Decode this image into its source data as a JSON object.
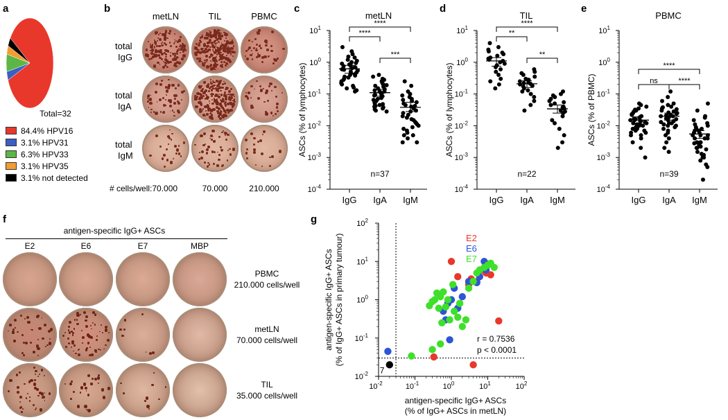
{
  "panels": {
    "a": "a",
    "b": "b",
    "c": "c",
    "d": "d",
    "e": "e",
    "f": "f",
    "g": "g"
  },
  "pie": {
    "total_label": "Total=32",
    "slices": [
      {
        "label": "84.4%",
        "name": "HPV16",
        "value": 84.4,
        "color": "#e8382b"
      },
      {
        "label": "3.1%",
        "name": "HPV31",
        "value": 3.1,
        "color": "#3b5fc4"
      },
      {
        "label": "6.3%",
        "name": "HPV33",
        "value": 6.3,
        "color": "#5cb646"
      },
      {
        "label": "3.1%",
        "name": "HPV35",
        "value": 3.1,
        "color": "#f39c32"
      },
      {
        "label": "3.1%",
        "name": "not detected",
        "value": 3.1,
        "color": "#000000"
      }
    ]
  },
  "elispot_b": {
    "columns": [
      "metLN",
      "TIL",
      "PBMC"
    ],
    "rows": [
      [
        "total",
        "IgG"
      ],
      [
        "total",
        "IgA"
      ],
      [
        "total",
        "IgM"
      ]
    ],
    "cells_label": "# cells/well:",
    "cells": [
      "70.000",
      "70.000",
      "210.000"
    ]
  },
  "elispot_f": {
    "header": "antigen-specific IgG+ ASCs",
    "columns": [
      "E2",
      "E6",
      "E7",
      "MBP"
    ],
    "rows": [
      {
        "name": "PBMC",
        "cells": "210.000 cells/well"
      },
      {
        "name": "metLN",
        "cells": "70.000 cells/well"
      },
      {
        "name": "TIL",
        "cells": "35.000 cells/well"
      }
    ]
  },
  "chart_data": [
    {
      "type": "scatter",
      "panel": "c",
      "title": "metLN",
      "ylabel": "ASCs (% of lymphocytes)",
      "categories": [
        "IgG",
        "IgA",
        "IgM"
      ],
      "y_scale": "log",
      "ylim": [
        0.0001,
        10
      ],
      "yticks": [
        "10",
        "10",
        "10",
        "10",
        "10",
        "10"
      ],
      "yexps": [
        "1",
        "0",
        "-1",
        "-2",
        "-3",
        "-4"
      ],
      "n_label": "n=37",
      "means": [
        0.62,
        0.11,
        0.038
      ],
      "sems": [
        [
          0.45,
          0.8
        ],
        [
          0.085,
          0.14
        ],
        [
          0.028,
          0.055
        ]
      ],
      "series": [
        {
          "name": "IgG",
          "values": [
            3.0,
            2.2,
            1.8,
            1.5,
            1.4,
            1.2,
            1.1,
            1.0,
            0.95,
            0.9,
            0.85,
            0.8,
            0.75,
            0.7,
            0.68,
            0.65,
            0.6,
            0.58,
            0.55,
            0.5,
            0.48,
            0.45,
            0.42,
            0.4,
            0.38,
            0.35,
            0.33,
            0.3,
            0.28,
            0.25,
            0.22,
            0.2,
            0.18,
            0.16,
            0.15,
            0.13,
            0.12
          ]
        },
        {
          "name": "IgA",
          "values": [
            0.4,
            0.35,
            0.3,
            0.28,
            0.25,
            0.22,
            0.2,
            0.19,
            0.18,
            0.17,
            0.15,
            0.14,
            0.13,
            0.12,
            0.12,
            0.11,
            0.1,
            0.1,
            0.095,
            0.09,
            0.085,
            0.08,
            0.075,
            0.07,
            0.065,
            0.06,
            0.055,
            0.05,
            0.048,
            0.045,
            0.042,
            0.04,
            0.038,
            0.035,
            0.033,
            0.03,
            0.028
          ]
        },
        {
          "name": "IgM",
          "values": [
            0.25,
            0.18,
            0.12,
            0.1,
            0.09,
            0.08,
            0.07,
            0.065,
            0.06,
            0.055,
            0.05,
            0.045,
            0.042,
            0.04,
            0.038,
            0.035,
            0.03,
            0.028,
            0.025,
            0.022,
            0.02,
            0.018,
            0.016,
            0.015,
            0.013,
            0.012,
            0.011,
            0.01,
            0.009,
            0.008,
            0.007,
            0.006,
            0.005,
            0.005,
            0.004,
            0.003,
            0.003
          ]
        }
      ],
      "brackets": [
        {
          "from": 0,
          "to": 1,
          "label": "****",
          "level": 0
        },
        {
          "from": 1,
          "to": 2,
          "label": "***",
          "level": 0
        },
        {
          "from": 0,
          "to": 2,
          "label": "****",
          "level": 1
        }
      ]
    },
    {
      "type": "scatter",
      "panel": "d",
      "title": "TIL",
      "ylabel": "ASCs (% of lymphocytes)",
      "categories": [
        "IgG",
        "IgA",
        "IgM"
      ],
      "y_scale": "log",
      "ylim": [
        0.0001,
        10
      ],
      "yticks": [
        "10",
        "10",
        "10",
        "10",
        "10",
        "10"
      ],
      "yexps": [
        "1",
        "0",
        "-1",
        "-2",
        "-3",
        "-4"
      ],
      "n_label": "n=22",
      "means": [
        1.1,
        0.21,
        0.034
      ],
      "sems": [
        [
          0.75,
          1.4
        ],
        [
          0.16,
          0.26
        ],
        [
          0.025,
          0.045
        ]
      ],
      "series": [
        {
          "name": "IgG",
          "values": [
            4.0,
            3.0,
            2.5,
            2.2,
            2.0,
            1.8,
            1.6,
            1.4,
            1.3,
            1.2,
            1.1,
            1.0,
            0.9,
            0.8,
            0.7,
            0.6,
            0.5,
            0.4,
            0.3,
            0.25,
            0.2,
            0.15
          ]
        },
        {
          "name": "IgA",
          "values": [
            0.6,
            0.5,
            0.45,
            0.4,
            0.35,
            0.3,
            0.28,
            0.25,
            0.23,
            0.22,
            0.21,
            0.2,
            0.18,
            0.17,
            0.15,
            0.13,
            0.12,
            0.1,
            0.08,
            0.06,
            0.045,
            0.03
          ]
        },
        {
          "name": "IgM",
          "values": [
            0.12,
            0.1,
            0.09,
            0.08,
            0.07,
            0.06,
            0.055,
            0.05,
            0.045,
            0.04,
            0.038,
            0.035,
            0.03,
            0.028,
            0.025,
            0.02,
            0.015,
            0.012,
            0.008,
            0.005,
            0.003,
            0.002
          ]
        }
      ],
      "brackets": [
        {
          "from": 0,
          "to": 1,
          "label": "**",
          "level": 0
        },
        {
          "from": 1,
          "to": 2,
          "label": "**",
          "level": 0
        },
        {
          "from": 0,
          "to": 2,
          "label": "****",
          "level": 1
        }
      ]
    },
    {
      "type": "scatter",
      "panel": "e",
      "title": "PBMC",
      "ylabel": "ASCs (% of PBMC)",
      "categories": [
        "IgG",
        "IgA",
        "IgM"
      ],
      "y_scale": "log",
      "ylim": [
        0.0001,
        10
      ],
      "yticks": [
        "10",
        "10",
        "10",
        "10",
        "10",
        "10"
      ],
      "yexps": [
        "1",
        "0",
        "-1",
        "-2",
        "-3",
        "-4"
      ],
      "n_label": "n=39",
      "means": [
        0.015,
        0.02,
        0.0055
      ],
      "sems": [
        [
          0.011,
          0.019
        ],
        [
          0.015,
          0.025
        ],
        [
          0.004,
          0.007
        ]
      ],
      "series": [
        {
          "name": "IgG",
          "values": [
            0.05,
            0.045,
            0.04,
            0.035,
            0.032,
            0.03,
            0.028,
            0.025,
            0.023,
            0.022,
            0.02,
            0.019,
            0.018,
            0.017,
            0.016,
            0.015,
            0.015,
            0.014,
            0.013,
            0.012,
            0.012,
            0.011,
            0.011,
            0.01,
            0.01,
            0.009,
            0.009,
            0.008,
            0.008,
            0.007,
            0.007,
            0.006,
            0.006,
            0.005,
            0.005,
            0.004,
            0.003,
            0.002,
            0.001
          ]
        },
        {
          "name": "IgA",
          "values": [
            0.12,
            0.08,
            0.06,
            0.05,
            0.045,
            0.04,
            0.038,
            0.035,
            0.033,
            0.03,
            0.028,
            0.026,
            0.025,
            0.024,
            0.022,
            0.021,
            0.02,
            0.02,
            0.019,
            0.018,
            0.017,
            0.016,
            0.015,
            0.014,
            0.013,
            0.012,
            0.012,
            0.011,
            0.01,
            0.01,
            0.009,
            0.008,
            0.007,
            0.006,
            0.005,
            0.004,
            0.003,
            0.002,
            0.0015
          ]
        },
        {
          "name": "IgM",
          "values": [
            0.05,
            0.03,
            0.02,
            0.018,
            0.015,
            0.012,
            0.011,
            0.01,
            0.009,
            0.008,
            0.008,
            0.007,
            0.007,
            0.006,
            0.006,
            0.005,
            0.005,
            0.005,
            0.004,
            0.004,
            0.004,
            0.003,
            0.003,
            0.003,
            0.0028,
            0.0025,
            0.0022,
            0.002,
            0.002,
            0.0018,
            0.0015,
            0.0013,
            0.0012,
            0.001,
            0.001,
            0.0008,
            0.0006,
            0.0005,
            0.0002
          ]
        }
      ],
      "brackets": [
        {
          "from": 0,
          "to": 1,
          "label": "ns",
          "level": 0
        },
        {
          "from": 1,
          "to": 2,
          "label": "****",
          "level": 0
        },
        {
          "from": 0,
          "to": 2,
          "label": "****",
          "level": 1
        }
      ]
    },
    {
      "type": "scatter",
      "panel": "g",
      "x_scale": "log",
      "y_scale": "log",
      "xlim": [
        0.01,
        100
      ],
      "ylim": [
        0.01,
        100
      ],
      "xlabel_line1": "antigen-specific IgG+ ASCs",
      "xlabel_line2": "(% of IgG+ ASCs in metLN)",
      "ylabel_line1": "antigen-specific IgG+ ASCs",
      "ylabel_line2": "(% of IgG+ ASCs in primary tumour)",
      "tick_base": "10",
      "tick_exps": [
        "-2",
        "-1",
        "0",
        "1",
        "2"
      ],
      "threshold_x": 0.03,
      "threshold_y": 0.03,
      "stat_r": "r = 0.7536",
      "stat_p": "p < 0.0001",
      "undetected_label": "7",
      "legend": [
        {
          "name": "E2",
          "color": "#e8382b"
        },
        {
          "name": "E6",
          "color": "#2f55d4"
        },
        {
          "name": "E7",
          "color": "#3ee02a"
        }
      ],
      "series": [
        {
          "name": "E2",
          "color": "#e8382b",
          "points": [
            [
              1.0,
              10
            ],
            [
              1.5,
              4
            ],
            [
              3,
              3
            ],
            [
              3.5,
              3.5
            ],
            [
              5,
              3
            ],
            [
              7,
              6
            ],
            [
              9,
              5
            ],
            [
              12,
              4.5
            ],
            [
              4,
              0.02
            ],
            [
              0.33,
              0.032
            ],
            [
              20,
              0.28
            ],
            [
              3,
              2.5
            ]
          ]
        },
        {
          "name": "E6",
          "color": "#2f55d4",
          "points": [
            [
              0.018,
              0.045
            ],
            [
              8,
              10
            ],
            [
              9,
              6
            ],
            [
              6,
              4
            ],
            [
              5,
              2.8
            ],
            [
              3,
              3
            ],
            [
              1.2,
              2
            ],
            [
              1,
              1
            ],
            [
              0.8,
              0.8
            ],
            [
              0.6,
              0.5
            ],
            [
              0.7,
              0.3
            ],
            [
              2,
              1.2
            ],
            [
              1.5,
              0.6
            ],
            [
              0.9,
              0.09
            ]
          ]
        },
        {
          "name": "E7",
          "color": "#3ee02a",
          "points": [
            [
              0.08,
              0.034
            ],
            [
              0.25,
              0.7
            ],
            [
              0.3,
              0.9
            ],
            [
              0.35,
              1.0
            ],
            [
              0.4,
              1.5
            ],
            [
              0.45,
              0.6
            ],
            [
              0.5,
              1.2
            ],
            [
              0.6,
              1.6
            ],
            [
              0.55,
              0.25
            ],
            [
              0.7,
              0.65
            ],
            [
              0.8,
              1.0
            ],
            [
              0.9,
              0.3
            ],
            [
              1.2,
              0.5
            ],
            [
              1.5,
              0.35
            ],
            [
              1.7,
              0.8
            ],
            [
              2,
              0.2
            ],
            [
              2.5,
              0.3
            ],
            [
              0.5,
              0.07
            ],
            [
              0.3,
              0.05
            ],
            [
              5,
              5
            ],
            [
              6,
              6
            ],
            [
              8,
              7
            ],
            [
              10,
              8
            ],
            [
              12,
              9
            ],
            [
              15,
              7
            ],
            [
              3,
              2
            ],
            [
              4,
              3
            ],
            [
              1.1,
              2.5
            ]
          ]
        }
      ],
      "undetected_points": [
        [
          0.02,
          0.02
        ]
      ]
    }
  ]
}
